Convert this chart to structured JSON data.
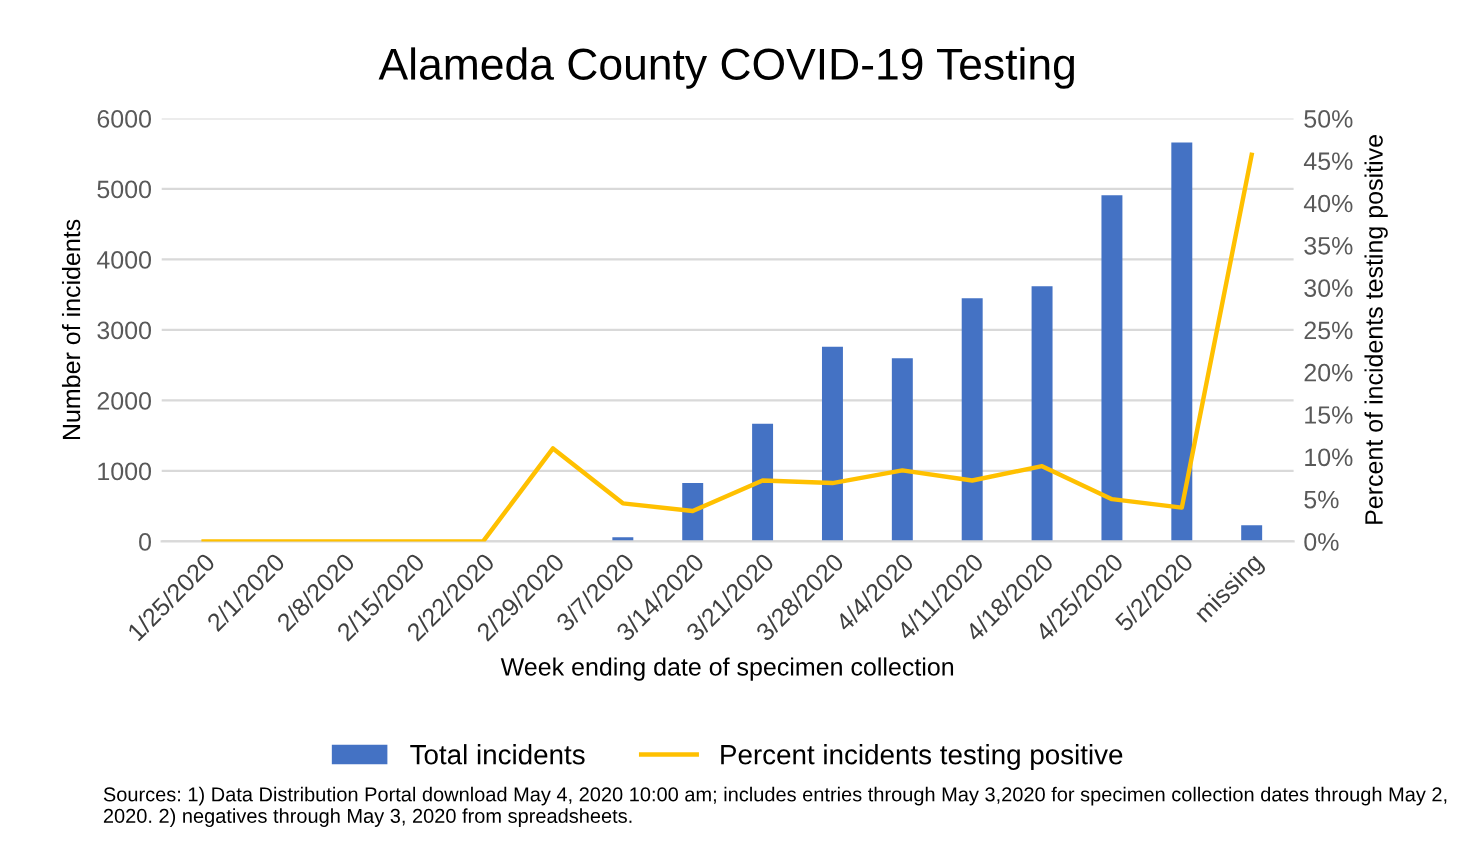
{
  "chart_data": {
    "type": "bar",
    "title": "Alameda County COVID-19 Testing",
    "xlabel": "Week ending date of specimen collection",
    "ylabel": "Number of incidents",
    "y2label": "Percent of incidents testing positive",
    "categories": [
      "1/25/2020",
      "2/1/2020",
      "2/8/2020",
      "2/15/2020",
      "2/22/2020",
      "2/29/2020",
      "3/7/2020",
      "3/14/2020",
      "3/21/2020",
      "3/28/2020",
      "4/4/2020",
      "4/11/2020",
      "4/18/2020",
      "4/25/2020",
      "5/2/2020",
      "missing"
    ],
    "series": [
      {
        "name": "Total incidents",
        "color": "#4472c4",
        "values": [
          0,
          0,
          0,
          0,
          0,
          0,
          60,
          830,
          1670,
          2760,
          2600,
          3450,
          3620,
          4910,
          5660,
          230
        ]
      },
      {
        "name": "Percent incidents testing positive",
        "type": "line",
        "axis": "y2",
        "color": "#ffc000",
        "values": [
          0,
          0,
          0,
          0,
          0,
          11,
          4.5,
          3.6,
          7.2,
          6.9,
          8.4,
          7.2,
          8.9,
          5,
          4,
          45.7
        ]
      }
    ],
    "ylim": [
      0,
      6000
    ],
    "yticks": [
      0,
      1000,
      2000,
      3000,
      4000,
      5000,
      6000
    ],
    "y2lim": [
      0,
      50
    ],
    "y2ticks": [
      {
        "value": 0,
        "label": "0%"
      },
      {
        "value": 5,
        "label": "5%"
      },
      {
        "value": 10,
        "label": "10%"
      },
      {
        "value": 15,
        "label": "15%"
      },
      {
        "value": 20,
        "label": "20%"
      },
      {
        "value": 25,
        "label": "25%"
      },
      {
        "value": 30,
        "label": "30%"
      },
      {
        "value": 35,
        "label": "35%"
      },
      {
        "value": 40,
        "label": "40%"
      },
      {
        "value": 45,
        "label": "45%"
      },
      {
        "value": 50,
        "label": "50%"
      }
    ],
    "grid": "y",
    "legend": "bottom",
    "marker": "none",
    "annotations": [
      "Sources: 1) Data Distribution Portal download May 4, 2020 10:00 am; includes entries through May 3,2020 for specimen collection dates through May 2, 2020. 2) negatives through May 3, 2020 from spreadsheets."
    ]
  }
}
